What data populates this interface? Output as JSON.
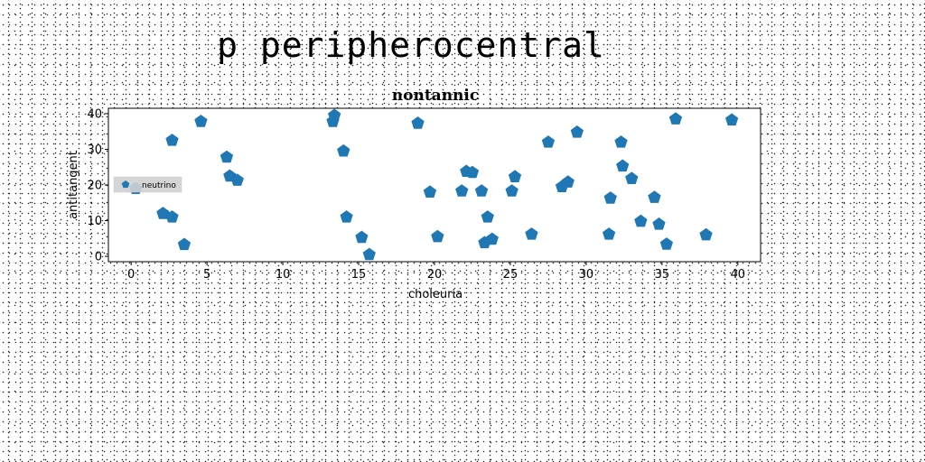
{
  "page_title": "p peripherocentral",
  "chart_data": {
    "type": "scatter",
    "title": "nontannic",
    "xlabel": "choleuria",
    "ylabel": "antitangent",
    "xlim": [
      -1.5,
      41.5
    ],
    "ylim": [
      -1.5,
      41.5
    ],
    "xticks": [
      0,
      5,
      10,
      15,
      20,
      25,
      30,
      35,
      40
    ],
    "yticks": [
      0,
      10,
      20,
      30,
      40
    ],
    "grid": false,
    "legend_position": "center-left",
    "marker": "pentagon",
    "color": "#1f77b4",
    "series": [
      {
        "name": "neutrino",
        "points": [
          [
            0.3,
            19
          ],
          [
            2.1,
            12
          ],
          [
            2.7,
            11
          ],
          [
            2.7,
            32.5
          ],
          [
            3.5,
            3.3
          ],
          [
            4.6,
            37.8
          ],
          [
            6.3,
            27.8
          ],
          [
            6.5,
            22.5
          ],
          [
            7,
            21.3
          ],
          [
            13.3,
            37.8
          ],
          [
            13.4,
            39.5
          ],
          [
            14,
            29.5
          ],
          [
            14.2,
            11
          ],
          [
            15.2,
            5.3
          ],
          [
            15.7,
            0.5
          ],
          [
            18.9,
            37.3
          ],
          [
            19.7,
            18
          ],
          [
            20.2,
            5.5
          ],
          [
            21.8,
            18.3
          ],
          [
            22.1,
            23.8
          ],
          [
            22.5,
            23.5
          ],
          [
            23.1,
            18.3
          ],
          [
            23.3,
            3.8
          ],
          [
            23.5,
            11
          ],
          [
            23.8,
            4.8
          ],
          [
            25.1,
            18.3
          ],
          [
            25.3,
            22.3
          ],
          [
            26.4,
            6.2
          ],
          [
            27.5,
            32
          ],
          [
            28.4,
            19.5
          ],
          [
            28.8,
            20.8
          ],
          [
            29.4,
            34.8
          ],
          [
            31.6,
            16.3
          ],
          [
            31.5,
            6.2
          ],
          [
            32.3,
            32
          ],
          [
            32.4,
            25.3
          ],
          [
            33,
            21.8
          ],
          [
            33.6,
            9.8
          ],
          [
            34.5,
            16.5
          ],
          [
            34.8,
            9
          ],
          [
            35.3,
            3.4
          ],
          [
            35.9,
            38.5
          ],
          [
            37.9,
            6
          ],
          [
            39.6,
            38.2
          ]
        ]
      }
    ]
  }
}
